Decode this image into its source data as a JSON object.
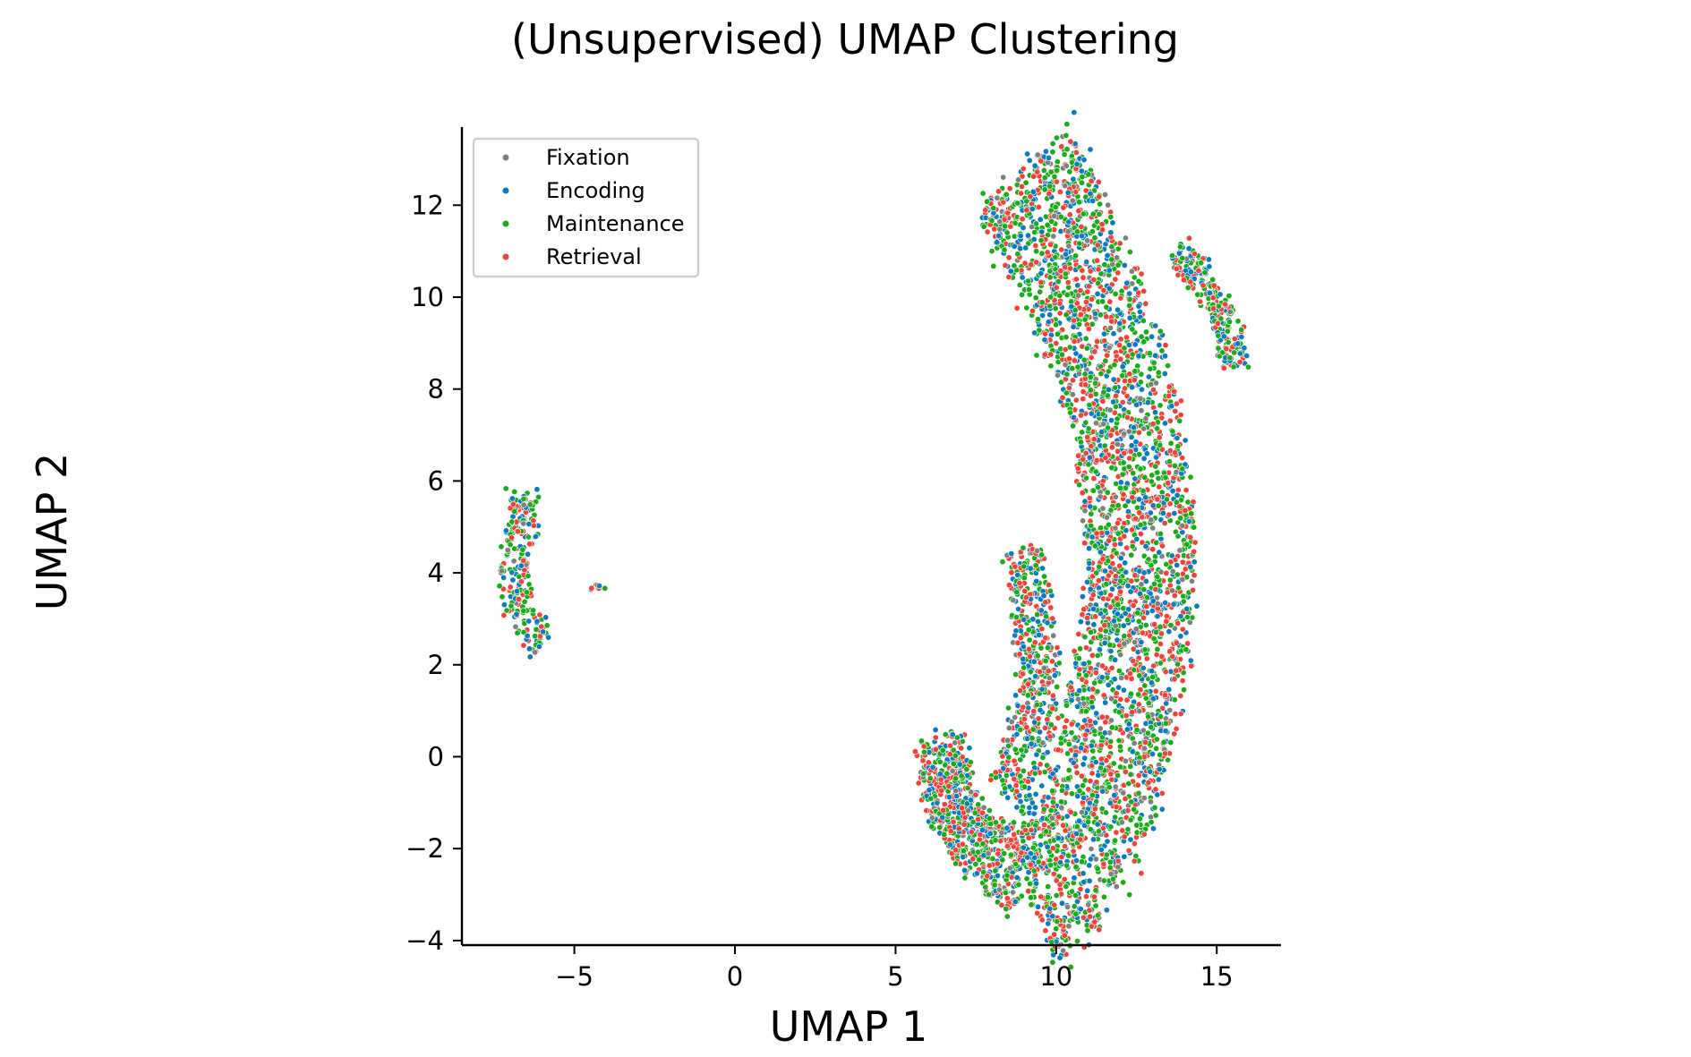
{
  "chart_data": {
    "type": "scatter",
    "title": "(Unsupervised) UMAP Clustering",
    "xlabel": "UMAP 1",
    "ylabel": "UMAP 2",
    "xlim": [
      -8.5,
      17
    ],
    "ylim": [
      -4.1,
      13.7
    ],
    "xticks": [
      -5,
      0,
      5,
      10,
      15
    ],
    "xtick_labels": [
      "−5",
      "0",
      "5",
      "10",
      "15"
    ],
    "yticks": [
      -4,
      -2,
      0,
      2,
      4,
      6,
      8,
      10,
      12
    ],
    "ytick_labels": [
      "−4",
      "−2",
      "0",
      "2",
      "4",
      "6",
      "8",
      "10",
      "12"
    ],
    "grid": false,
    "legend_position": "top-left",
    "series": [
      {
        "name": "Fixation",
        "color": "#7f7f7f",
        "weight": 0.08
      },
      {
        "name": "Encoding",
        "color": "#0a7bbd",
        "weight": 0.24
      },
      {
        "name": "Maintenance",
        "color": "#1aaa1a",
        "weight": 0.38
      },
      {
        "name": "Retrieval",
        "color": "#f0443a",
        "weight": 0.3
      }
    ],
    "clusters": [
      {
        "region": "left",
        "spine": [
          [
            -6.6,
            5.8
          ],
          [
            -6.6,
            5.0
          ],
          [
            -6.9,
            4.2
          ],
          [
            -6.8,
            3.5
          ],
          [
            -6.4,
            2.9
          ],
          [
            -6.0,
            2.5
          ]
        ],
        "width": 0.45,
        "count": 230
      },
      {
        "region": "left-small",
        "spine": [
          [
            -4.3,
            3.75
          ],
          [
            -4.3,
            3.65
          ]
        ],
        "width": 0.12,
        "count": 10
      },
      {
        "region": "upper-right",
        "spine": [
          [
            13.8,
            11.0
          ],
          [
            14.4,
            10.5
          ],
          [
            15.0,
            9.9
          ],
          [
            15.5,
            9.1
          ],
          [
            15.5,
            8.5
          ]
        ],
        "width": 0.4,
        "count": 240
      },
      {
        "region": "main",
        "spine": [
          [
            9.0,
            12.8
          ],
          [
            9.6,
            11.8
          ],
          [
            10.3,
            10.8
          ],
          [
            11.0,
            9.8
          ],
          [
            11.6,
            8.8
          ],
          [
            12.0,
            7.8
          ],
          [
            12.3,
            6.8
          ],
          [
            12.5,
            5.8
          ],
          [
            12.6,
            4.8
          ],
          [
            12.6,
            3.8
          ],
          [
            12.5,
            2.8
          ],
          [
            12.3,
            1.8
          ],
          [
            12.0,
            0.8
          ],
          [
            11.7,
            -0.2
          ],
          [
            11.2,
            -1.2
          ],
          [
            10.6,
            -2.1
          ],
          [
            9.8,
            -2.7
          ],
          [
            9.2,
            -3.0
          ]
        ],
        "width": 1.7,
        "count": 3400
      },
      {
        "region": "main-left-arm",
        "spine": [
          [
            6.4,
            0.4
          ],
          [
            6.5,
            -0.5
          ],
          [
            6.9,
            -1.3
          ],
          [
            7.6,
            -1.9
          ],
          [
            8.4,
            -2.4
          ],
          [
            9.0,
            -2.8
          ]
        ],
        "width": 0.75,
        "count": 700
      },
      {
        "region": "main-inner",
        "spine": [
          [
            9.0,
            4.5
          ],
          [
            9.3,
            3.0
          ],
          [
            9.5,
            1.5
          ],
          [
            9.0,
            0.2
          ],
          [
            8.5,
            -0.8
          ]
        ],
        "width": 0.6,
        "count": 500
      }
    ]
  }
}
